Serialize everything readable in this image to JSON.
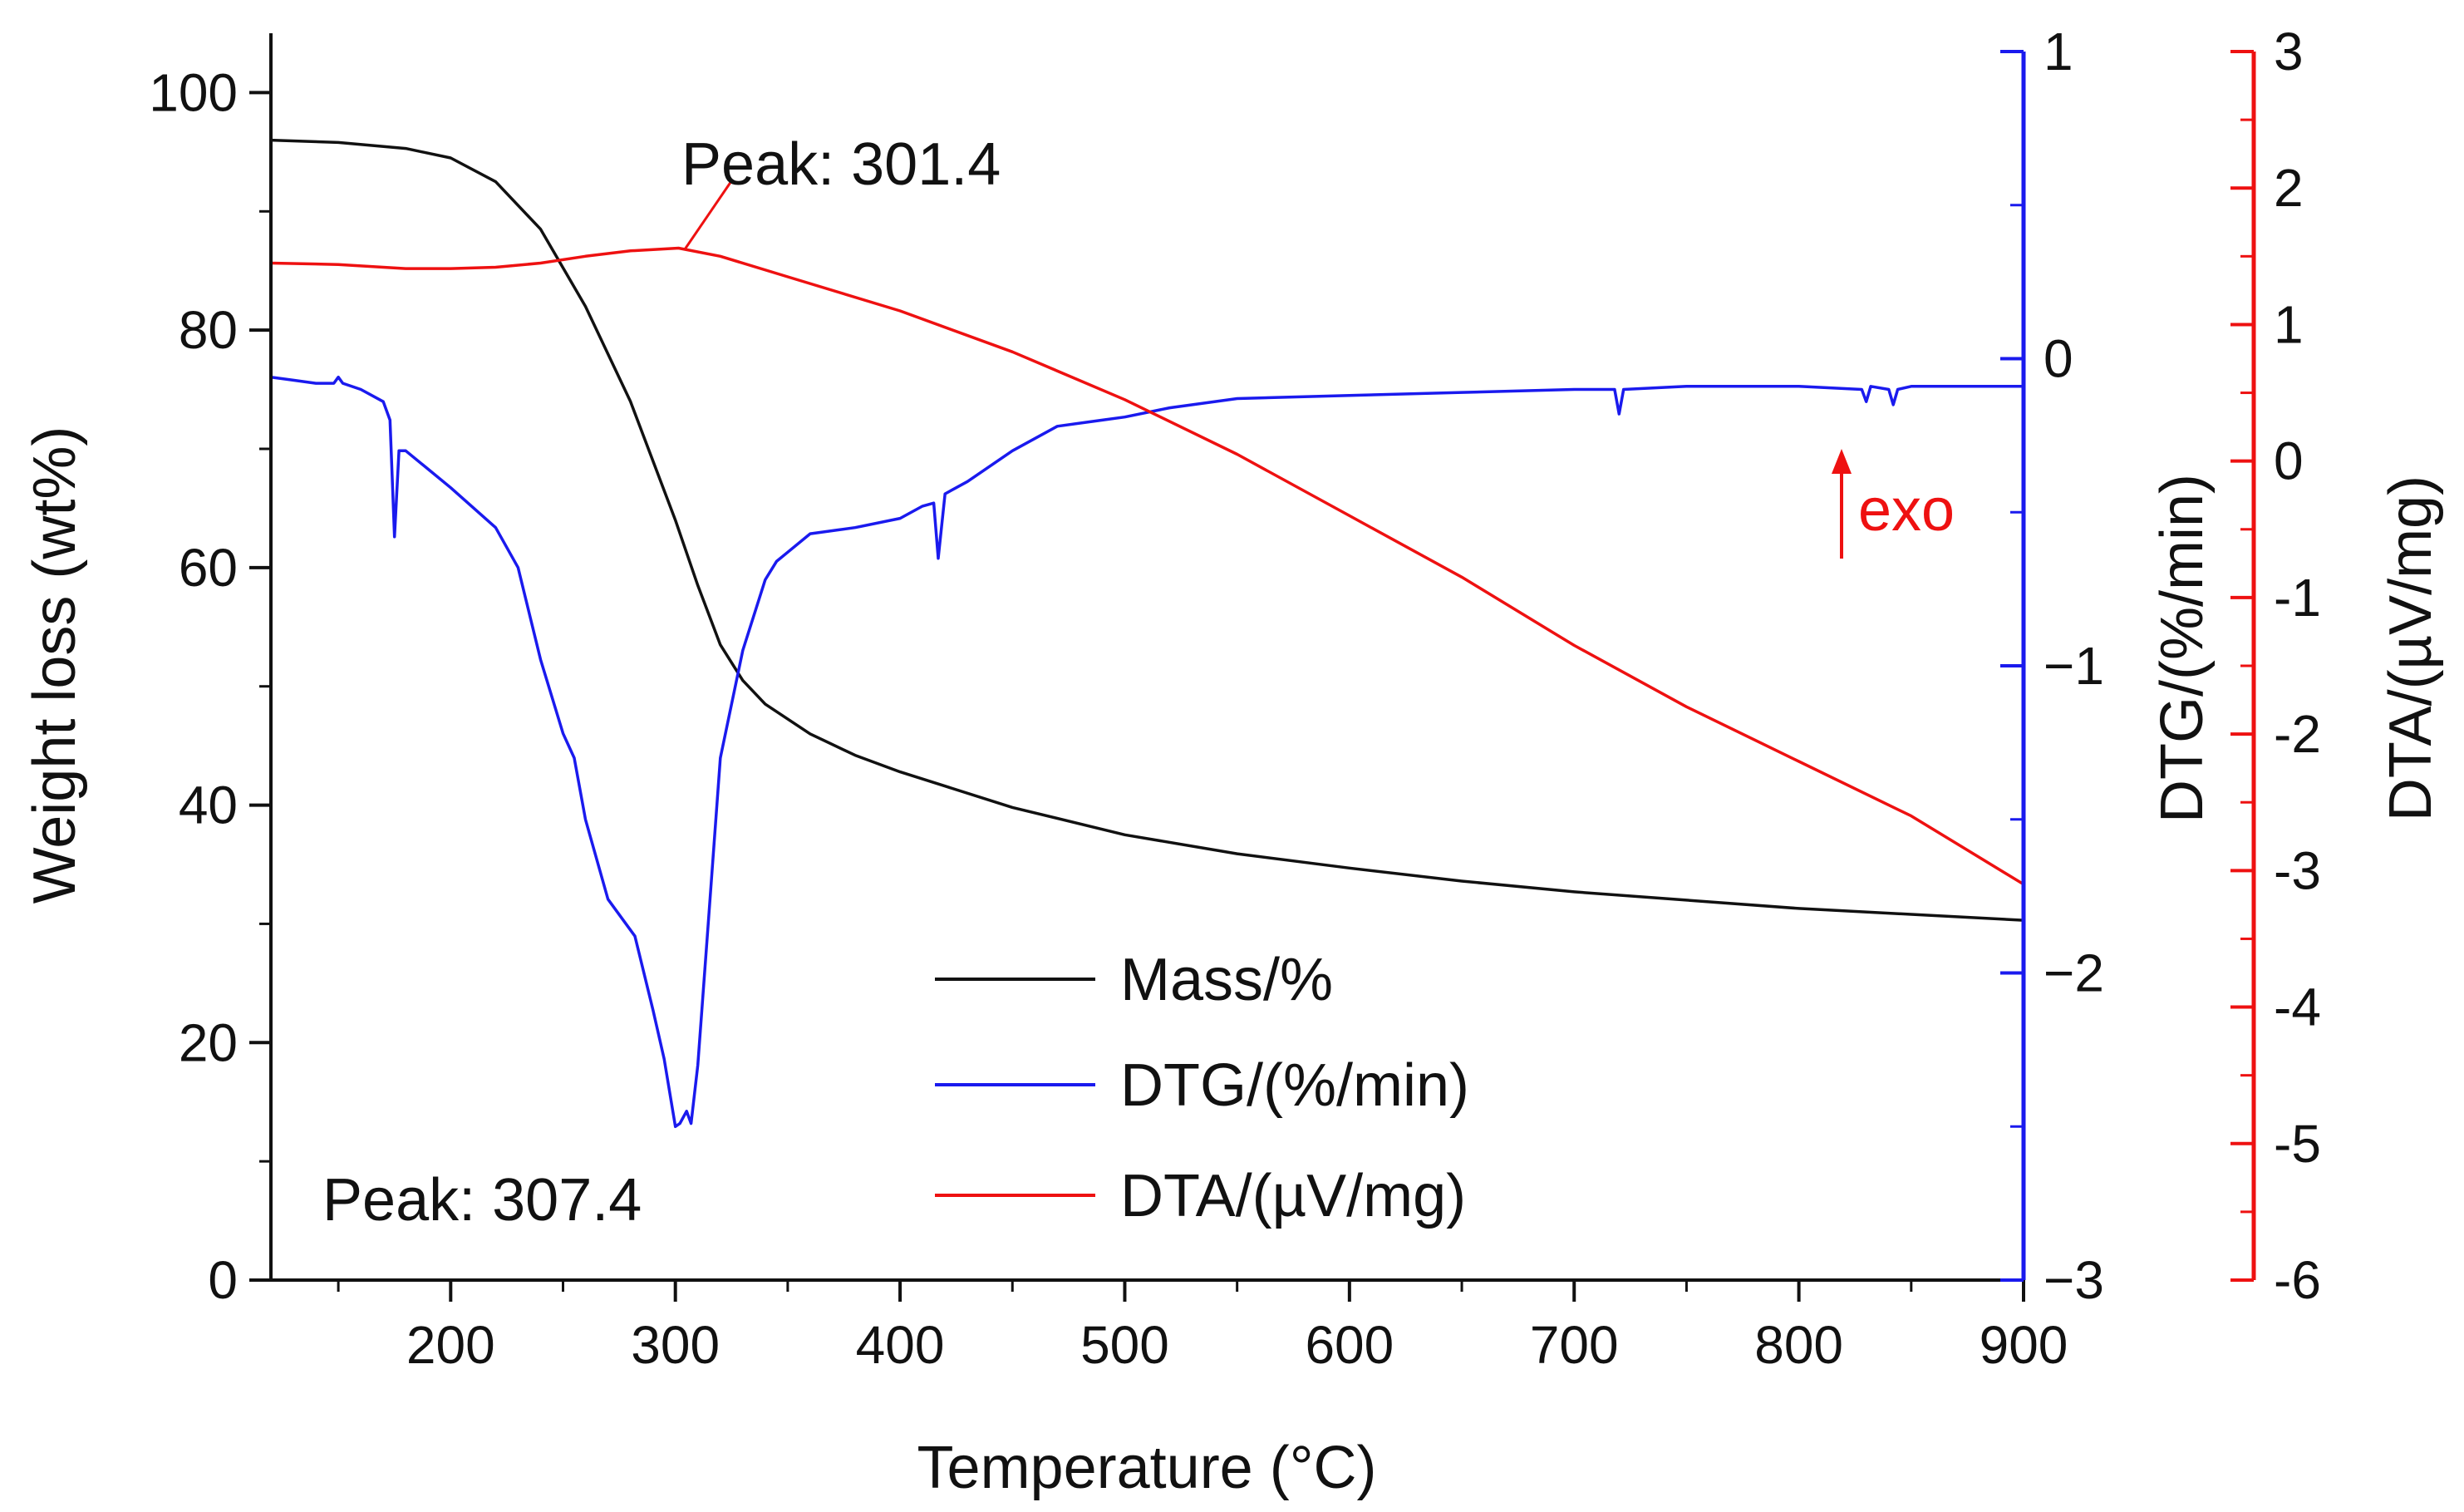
{
  "chart_data": {
    "type": "line",
    "title": "",
    "xlabel": "Temperature (°C)",
    "xlim": [
      120,
      900
    ],
    "xticks": [
      200,
      300,
      400,
      500,
      600,
      700,
      800,
      900
    ],
    "axes": {
      "left": {
        "label": "Weight loss (wt%)",
        "range": [
          0,
          105
        ],
        "ticks": [
          0,
          20,
          40,
          60,
          80,
          100
        ],
        "color": "#111111"
      },
      "right1": {
        "label": "DTG/(%/min)",
        "range": [
          -3,
          1
        ],
        "ticks": [
          -3,
          -2,
          -1,
          0,
          1
        ],
        "color": "#1a1aee"
      },
      "right2": {
        "label": "DTA/(µV/mg)",
        "range": [
          -6,
          3
        ],
        "ticks": [
          -6,
          -5,
          -4,
          -3,
          -2,
          -1,
          0,
          1,
          2,
          3
        ],
        "color": "#ee1111"
      }
    },
    "legend": {
      "placement": "bottom-center",
      "entries": [
        {
          "name": "Mass/%",
          "color": "#111111"
        },
        {
          "name": "DTG/(%/min)",
          "color": "#1a1aee"
        },
        {
          "name": "DTA/(µV/mg)",
          "color": "#ee1111"
        }
      ]
    },
    "annotations": {
      "dta_peak": "Peak: 301.4",
      "dtg_peak": "Peak: 307.4",
      "exo": "exo"
    },
    "series": [
      {
        "name": "Mass/%",
        "axis": "left",
        "color": "#111111",
        "x": [
          120,
          150,
          180,
          200,
          220,
          240,
          260,
          280,
          300,
          310,
          320,
          330,
          340,
          360,
          380,
          400,
          420,
          450,
          500,
          550,
          600,
          650,
          700,
          750,
          800,
          850,
          900
        ],
        "y": [
          96,
          95.8,
          95.3,
          94.5,
          92.5,
          88.5,
          82,
          74,
          64,
          58.5,
          53.5,
          50.5,
          48.5,
          46,
          44.2,
          42.8,
          41.6,
          39.8,
          37.5,
          35.9,
          34.7,
          33.6,
          32.7,
          32,
          31.3,
          30.8,
          30.3
        ]
      },
      {
        "name": "DTG/(%/min)",
        "axis": "right1",
        "color": "#1a1aee",
        "x": [
          120,
          130,
          140,
          148,
          150,
          152,
          160,
          170,
          173,
          175,
          177,
          180,
          190,
          200,
          220,
          230,
          240,
          250,
          255,
          260,
          270,
          280,
          282,
          290,
          295,
          300,
          302,
          305,
          307,
          310,
          315,
          320,
          330,
          340,
          345,
          350,
          360,
          380,
          400,
          410,
          415,
          417,
          420,
          430,
          450,
          470,
          490,
          500,
          520,
          550,
          600,
          650,
          700,
          718,
          720,
          722,
          750,
          800,
          828,
          830,
          832,
          840,
          842,
          844,
          850,
          900
        ],
        "y": [
          -0.06,
          -0.07,
          -0.08,
          -0.08,
          -0.06,
          -0.08,
          -0.1,
          -0.14,
          -0.2,
          -0.58,
          -0.3,
          -0.3,
          -0.36,
          -0.42,
          -0.55,
          -0.68,
          -0.98,
          -1.22,
          -1.3,
          -1.5,
          -1.76,
          -1.86,
          -1.88,
          -2.12,
          -2.28,
          -2.5,
          -2.49,
          -2.45,
          -2.49,
          -2.3,
          -1.8,
          -1.3,
          -0.95,
          -0.72,
          -0.66,
          -0.63,
          -0.57,
          -0.55,
          -0.52,
          -0.48,
          -0.47,
          -0.65,
          -0.44,
          -0.4,
          -0.3,
          -0.22,
          -0.2,
          -0.19,
          -0.16,
          -0.13,
          -0.12,
          -0.11,
          -0.1,
          -0.1,
          -0.18,
          -0.1,
          -0.09,
          -0.09,
          -0.1,
          -0.14,
          -0.09,
          -0.1,
          -0.15,
          -0.1,
          -0.09,
          -0.09
        ]
      },
      {
        "name": "DTA/(µV/mg)",
        "axis": "right2",
        "color": "#ee1111",
        "x": [
          120,
          150,
          180,
          200,
          220,
          240,
          260,
          280,
          301.4,
          320,
          350,
          400,
          450,
          500,
          550,
          600,
          650,
          700,
          750,
          800,
          850,
          900
        ],
        "y": [
          1.45,
          1.44,
          1.41,
          1.41,
          1.42,
          1.45,
          1.5,
          1.54,
          1.56,
          1.5,
          1.35,
          1.1,
          0.8,
          0.45,
          0.05,
          -0.4,
          -0.85,
          -1.35,
          -1.8,
          -2.2,
          -2.6,
          -3.1
        ]
      }
    ]
  }
}
